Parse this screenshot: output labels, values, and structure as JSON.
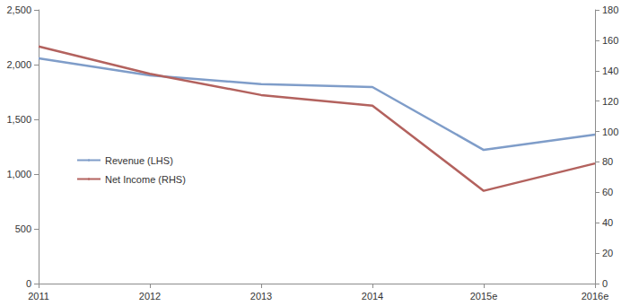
{
  "chart_data": {
    "type": "line",
    "categories": [
      "2011",
      "2012",
      "2013",
      "2014",
      "2015e",
      "2016e"
    ],
    "series": [
      {
        "name": "Revenue (LHS)",
        "color": "#7f9dc9",
        "axis": "y",
        "values": [
          2057,
          1902,
          1822,
          1795,
          1221,
          1361
        ]
      },
      {
        "name": "Net Income (RHS)",
        "color": "#b3625e",
        "axis": "y2",
        "values": [
          156,
          138,
          124,
          117,
          61,
          79
        ]
      }
    ],
    "ylim": [
      0,
      2500
    ],
    "yticks": [
      0,
      500,
      {
        "value": 1000,
        "label": "1,000"
      },
      {
        "value": 1500,
        "label": "1,500"
      },
      {
        "value": 2000,
        "label": "2,000"
      },
      {
        "value": 2500,
        "label": "2,500"
      }
    ],
    "y2lim": [
      0,
      180
    ],
    "y2ticks": [
      0,
      20,
      40,
      60,
      80,
      100,
      120,
      140,
      160,
      180
    ],
    "grid": false,
    "legend": "left"
  }
}
